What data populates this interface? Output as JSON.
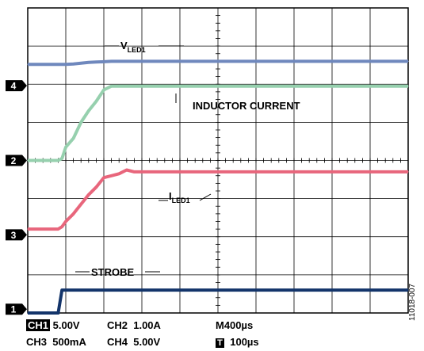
{
  "chart_data": {
    "type": "line",
    "title": "",
    "xlabel": "",
    "ylabel": "",
    "grid": true,
    "x_divisions": 10,
    "y_divisions": 8,
    "x_unit": "µs",
    "x": [
      0,
      40,
      80,
      90,
      100,
      120,
      140,
      160,
      180,
      200,
      220,
      240,
      260,
      280,
      300,
      350,
      400,
      500,
      600,
      700,
      800,
      900,
      1000
    ],
    "series": [
      {
        "name": "VLED1",
        "channel": "CH1",
        "color": "#6f88bd",
        "y_div": [
          6.52,
          6.52,
          6.52,
          6.52,
          6.52,
          6.53,
          6.55,
          6.57,
          6.58,
          6.59,
          6.6,
          6.6,
          6.6,
          6.6,
          6.6,
          6.6,
          6.6,
          6.6,
          6.6,
          6.6,
          6.6,
          6.6,
          6.6
        ]
      },
      {
        "name": "INDUCTOR CURRENT",
        "channel": "CH2",
        "color": "#96d0ae",
        "y_div": [
          4.0,
          4.0,
          4.0,
          4.05,
          4.35,
          4.58,
          5.0,
          5.3,
          5.55,
          5.85,
          5.95,
          5.95,
          5.95,
          5.95,
          5.95,
          5.95,
          5.95,
          5.95,
          5.95,
          5.95,
          5.95,
          5.95,
          5.95
        ]
      },
      {
        "name": "ILED1",
        "channel": "CH3",
        "color": "#e8667c",
        "y_div": [
          2.2,
          2.2,
          2.2,
          2.26,
          2.4,
          2.6,
          2.85,
          3.1,
          3.3,
          3.55,
          3.6,
          3.65,
          3.75,
          3.7,
          3.7,
          3.7,
          3.7,
          3.7,
          3.7,
          3.7,
          3.7,
          3.7,
          3.7
        ]
      },
      {
        "name": "STROBE",
        "channel": "CH4",
        "color": "#13346a",
        "y_div": [
          0.0,
          0.0,
          0.0,
          0.6,
          0.6,
          0.6,
          0.6,
          0.6,
          0.6,
          0.6,
          0.6,
          0.6,
          0.6,
          0.6,
          0.6,
          0.6,
          0.6,
          0.6,
          0.6,
          0.6,
          0.6,
          0.6,
          0.6
        ]
      }
    ],
    "ground_markers": [
      {
        "label": "4",
        "y_div": 5.96
      },
      {
        "label": "2",
        "y_div": 4.0
      },
      {
        "label": "3",
        "y_div": 2.05
      },
      {
        "label": "1",
        "y_div": 0.1
      }
    ],
    "annotations": [
      {
        "text": "V",
        "sub": "LED1"
      },
      {
        "text": "INDUCTOR CURRENT"
      },
      {
        "text": "I",
        "sub": "LED1"
      },
      {
        "text": "STROBE"
      }
    ]
  },
  "settings": {
    "ch1_label": "CH1",
    "ch1_value": " 5.00V",
    "ch2": "CH2  1.00A",
    "ch3": "CH3  500mA",
    "ch4": "CH4  5.00V",
    "timebase": "M400µs",
    "trigger_icon": "T",
    "trigger_value": "100µs"
  },
  "figure_id": "11018-007"
}
